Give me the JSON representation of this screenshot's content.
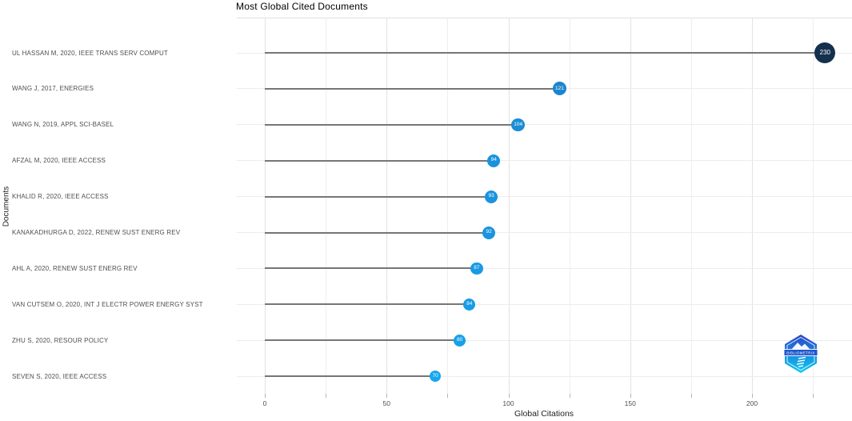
{
  "chart_data": {
    "type": "scatter",
    "variant": "horizontal-lollipop",
    "title": "Most Global Cited Documents",
    "xlabel": "Global Citations",
    "ylabel": "Documents",
    "xlim": [
      0,
      240
    ],
    "x_major_ticks": [
      0,
      50,
      100,
      150,
      200
    ],
    "x_minor_step": 25,
    "x_grid_max": 225,
    "grid": true,
    "legend": "none",
    "categories": [
      "UL HASSAN M, 2020, IEEE TRANS SERV COMPUT",
      "WANG J, 2017, ENERGIES",
      "WANG N, 2019, APPL SCI-BASEL",
      "AFZAL M, 2020, IEEE ACCESS",
      "KHALID R, 2020, IEEE ACCESS",
      "KANAKADHURGA D, 2022, RENEW SUST ENERG REV",
      "AHL A, 2020, RENEW SUST ENERG REV",
      "VAN CUTSEM O, 2020, INT J ELECTR POWER ENERGY SYST",
      "ZHU S, 2020, RESOUR POLICY",
      "SEVEN S, 2020, IEEE ACCESS"
    ],
    "values": [
      230,
      121,
      104,
      94,
      93,
      92,
      87,
      84,
      80,
      70
    ],
    "point_colors": [
      "#14304e",
      "#1c86cd",
      "#1b8dd5",
      "#1a93dc",
      "#1a94dd",
      "#1a94de",
      "#199ae3",
      "#199ce5",
      "#18a0e9",
      "#16a6ee"
    ],
    "point_radii": [
      13,
      8.5,
      8.3,
      8,
      8,
      8,
      7.8,
      7.7,
      7.5,
      7.2
    ],
    "stem_color": "#767676",
    "grid_color": "#e8e8e8"
  },
  "logo": {
    "text": "BIBLIOMETRIX"
  }
}
